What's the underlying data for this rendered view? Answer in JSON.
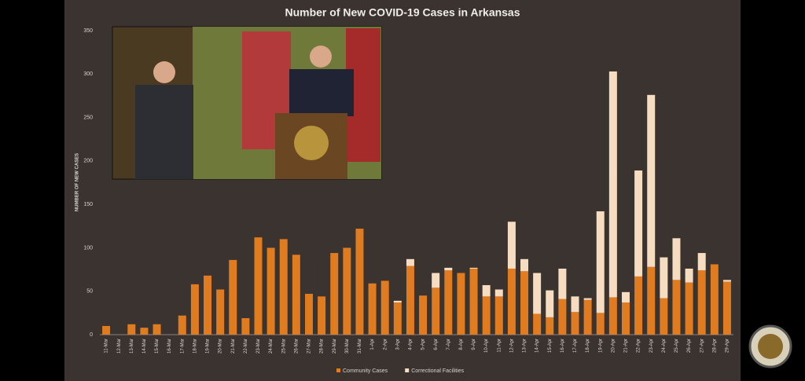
{
  "chart_data": {
    "type": "stacked-bar",
    "title": "Number of New COVID-19 Cases in Arkansas",
    "y_label": "NUMBER OF NEW CASES",
    "categories": [
      "11-Mar",
      "12-Mar",
      "13-Mar",
      "14-Mar",
      "15-Mar",
      "16-Mar",
      "17-Mar",
      "18-Mar",
      "19-Mar",
      "20-Mar",
      "21-Mar",
      "22-Mar",
      "23-Mar",
      "24-Mar",
      "25-Mar",
      "26-Mar",
      "27-Mar",
      "28-Mar",
      "29-Mar",
      "30-Mar",
      "31-Mar",
      "1-Apr",
      "2-Apr",
      "3-Apr",
      "4-Apr",
      "5-Apr",
      "6-Apr",
      "7-Apr",
      "8-Apr",
      "9-Apr",
      "10-Apr",
      "11-Apr",
      "12-Apr",
      "13-Apr",
      "14-Apr",
      "15-Apr",
      "16-Apr",
      "17-Apr",
      "18-Apr",
      "19-Apr",
      "20-Apr",
      "21-Apr",
      "22-Apr",
      "23-Apr",
      "24-Apr",
      "25-Apr",
      "26-Apr",
      "27-Apr",
      "28-Apr",
      "29-Apr"
    ],
    "series": [
      {
        "name": "Community Cases",
        "color": "#e07b1f",
        "values": [
          10,
          0,
          12,
          8,
          12,
          0,
          22,
          58,
          68,
          52,
          86,
          19,
          112,
          100,
          110,
          92,
          47,
          44,
          94,
          100,
          122,
          59,
          62,
          37,
          79,
          45,
          54,
          74,
          71,
          76,
          44,
          44,
          76,
          73,
          24,
          20,
          41,
          26,
          40,
          25,
          43,
          37,
          67,
          78,
          42,
          63,
          60,
          74,
          81,
          61
        ]
      },
      {
        "name": "Correctional Facilities",
        "color": "#f6dcc0",
        "values": [
          0,
          0,
          0,
          0,
          0,
          0,
          0,
          0,
          0,
          0,
          0,
          0,
          0,
          0,
          0,
          0,
          0,
          0,
          0,
          0,
          0,
          0,
          0,
          2,
          8,
          0,
          17,
          3,
          0,
          1,
          13,
          8,
          54,
          14,
          47,
          31,
          35,
          18,
          2,
          117,
          260,
          12,
          122,
          198,
          47,
          48,
          16,
          20,
          0,
          2
        ]
      }
    ],
    "ylim": [
      0,
      350
    ],
    "yticks": [
      0,
      50,
      100,
      150,
      200,
      250,
      300,
      350
    ],
    "grid": false
  }
}
